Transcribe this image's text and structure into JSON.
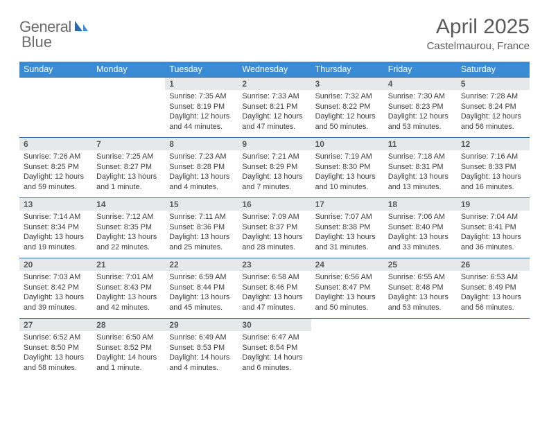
{
  "brand": {
    "word1": "General",
    "word2": "Blue"
  },
  "title": "April 2025",
  "location": "Castelmaurou, France",
  "accent_color": "#3b8bd4",
  "border_color": "#2f6aa8",
  "header_bg": "#e7e8e9",
  "weekdays": [
    "Sunday",
    "Monday",
    "Tuesday",
    "Wednesday",
    "Thursday",
    "Friday",
    "Saturday"
  ],
  "weeks": [
    [
      null,
      null,
      {
        "n": "1",
        "sr": "7:35 AM",
        "ss": "8:19 PM",
        "dl": "12 hours and 44 minutes."
      },
      {
        "n": "2",
        "sr": "7:33 AM",
        "ss": "8:21 PM",
        "dl": "12 hours and 47 minutes."
      },
      {
        "n": "3",
        "sr": "7:32 AM",
        "ss": "8:22 PM",
        "dl": "12 hours and 50 minutes."
      },
      {
        "n": "4",
        "sr": "7:30 AM",
        "ss": "8:23 PM",
        "dl": "12 hours and 53 minutes."
      },
      {
        "n": "5",
        "sr": "7:28 AM",
        "ss": "8:24 PM",
        "dl": "12 hours and 56 minutes."
      }
    ],
    [
      {
        "n": "6",
        "sr": "7:26 AM",
        "ss": "8:25 PM",
        "dl": "12 hours and 59 minutes."
      },
      {
        "n": "7",
        "sr": "7:25 AM",
        "ss": "8:27 PM",
        "dl": "13 hours and 1 minute."
      },
      {
        "n": "8",
        "sr": "7:23 AM",
        "ss": "8:28 PM",
        "dl": "13 hours and 4 minutes."
      },
      {
        "n": "9",
        "sr": "7:21 AM",
        "ss": "8:29 PM",
        "dl": "13 hours and 7 minutes."
      },
      {
        "n": "10",
        "sr": "7:19 AM",
        "ss": "8:30 PM",
        "dl": "13 hours and 10 minutes."
      },
      {
        "n": "11",
        "sr": "7:18 AM",
        "ss": "8:31 PM",
        "dl": "13 hours and 13 minutes."
      },
      {
        "n": "12",
        "sr": "7:16 AM",
        "ss": "8:33 PM",
        "dl": "13 hours and 16 minutes."
      }
    ],
    [
      {
        "n": "13",
        "sr": "7:14 AM",
        "ss": "8:34 PM",
        "dl": "13 hours and 19 minutes."
      },
      {
        "n": "14",
        "sr": "7:12 AM",
        "ss": "8:35 PM",
        "dl": "13 hours and 22 minutes."
      },
      {
        "n": "15",
        "sr": "7:11 AM",
        "ss": "8:36 PM",
        "dl": "13 hours and 25 minutes."
      },
      {
        "n": "16",
        "sr": "7:09 AM",
        "ss": "8:37 PM",
        "dl": "13 hours and 28 minutes."
      },
      {
        "n": "17",
        "sr": "7:07 AM",
        "ss": "8:38 PM",
        "dl": "13 hours and 31 minutes."
      },
      {
        "n": "18",
        "sr": "7:06 AM",
        "ss": "8:40 PM",
        "dl": "13 hours and 33 minutes."
      },
      {
        "n": "19",
        "sr": "7:04 AM",
        "ss": "8:41 PM",
        "dl": "13 hours and 36 minutes."
      }
    ],
    [
      {
        "n": "20",
        "sr": "7:03 AM",
        "ss": "8:42 PM",
        "dl": "13 hours and 39 minutes."
      },
      {
        "n": "21",
        "sr": "7:01 AM",
        "ss": "8:43 PM",
        "dl": "13 hours and 42 minutes."
      },
      {
        "n": "22",
        "sr": "6:59 AM",
        "ss": "8:44 PM",
        "dl": "13 hours and 45 minutes."
      },
      {
        "n": "23",
        "sr": "6:58 AM",
        "ss": "8:46 PM",
        "dl": "13 hours and 47 minutes."
      },
      {
        "n": "24",
        "sr": "6:56 AM",
        "ss": "8:47 PM",
        "dl": "13 hours and 50 minutes."
      },
      {
        "n": "25",
        "sr": "6:55 AM",
        "ss": "8:48 PM",
        "dl": "13 hours and 53 minutes."
      },
      {
        "n": "26",
        "sr": "6:53 AM",
        "ss": "8:49 PM",
        "dl": "13 hours and 56 minutes."
      }
    ],
    [
      {
        "n": "27",
        "sr": "6:52 AM",
        "ss": "8:50 PM",
        "dl": "13 hours and 58 minutes."
      },
      {
        "n": "28",
        "sr": "6:50 AM",
        "ss": "8:52 PM",
        "dl": "14 hours and 1 minute."
      },
      {
        "n": "29",
        "sr": "6:49 AM",
        "ss": "8:53 PM",
        "dl": "14 hours and 4 minutes."
      },
      {
        "n": "30",
        "sr": "6:47 AM",
        "ss": "8:54 PM",
        "dl": "14 hours and 6 minutes."
      },
      null,
      null,
      null
    ]
  ],
  "labels": {
    "sunrise": "Sunrise:",
    "sunset": "Sunset:",
    "daylight": "Daylight:"
  }
}
